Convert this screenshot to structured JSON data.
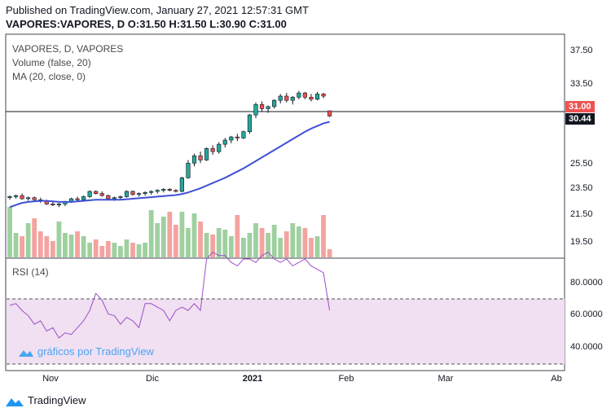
{
  "header": {
    "published": "Published on TradingView.com, January 27, 2021 12:57:31 GMT",
    "ohlc": "VAPORES:VAPORES, D O:31.50 H:31.50 L:30.90 C:31.00"
  },
  "legend": {
    "symbol": "VAPORES, D, VAPORES",
    "volume": "Volume (false, 20)",
    "ma": "MA (20, close, 0)",
    "rsi": "RSI (14)"
  },
  "price_axis": {
    "ticks": [
      "37.50",
      "33.50",
      "25.50",
      "23.50",
      "21.50",
      "19.50"
    ],
    "last_price": "31.00",
    "ma_value": "30.44"
  },
  "rsi_axis": {
    "ticks": [
      "80.0000",
      "60.0000",
      "40.0000"
    ],
    "upper_band": 70,
    "lower_band": 30
  },
  "time_axis": {
    "ticks": [
      "Nov",
      "Dic",
      "2021",
      "Feb",
      "Mar",
      "Ab"
    ]
  },
  "watermark": "gráficos por TradingView",
  "footer": {
    "brand": "TradingView"
  },
  "colors": {
    "up": "#26a69a",
    "down": "#ef5350",
    "vol_up": "#9fd0a0",
    "vol_down": "#f4a3a0",
    "ma": "#3f51d6",
    "rsi": "#9c4fc6",
    "rsi_band": "#f0e0f2",
    "text": "#131722"
  },
  "chart_data": {
    "type": "candlestick",
    "title": "VAPORES, D, VAPORES",
    "candles": [
      [
        23.2,
        23.4,
        23.0,
        23.3
      ],
      [
        23.3,
        23.5,
        23.1,
        23.4
      ],
      [
        23.4,
        23.6,
        23.0,
        23.1
      ],
      [
        23.1,
        23.3,
        22.9,
        23.2
      ],
      [
        23.2,
        23.3,
        22.8,
        23.0
      ],
      [
        23.0,
        23.2,
        22.7,
        22.9
      ],
      [
        22.9,
        23.0,
        22.5,
        22.6
      ],
      [
        22.6,
        22.8,
        22.4,
        22.5
      ],
      [
        22.5,
        22.7,
        22.3,
        22.6
      ],
      [
        22.6,
        22.9,
        22.4,
        22.8
      ],
      [
        22.8,
        23.2,
        22.7,
        23.1
      ],
      [
        23.1,
        23.3,
        22.9,
        23.0
      ],
      [
        23.0,
        23.4,
        22.9,
        23.3
      ],
      [
        23.3,
        23.9,
        23.2,
        23.8
      ],
      [
        23.8,
        23.9,
        23.5,
        23.6
      ],
      [
        23.6,
        23.8,
        23.3,
        23.4
      ],
      [
        23.4,
        23.5,
        23.0,
        23.1
      ],
      [
        23.1,
        23.3,
        22.9,
        23.2
      ],
      [
        23.2,
        23.4,
        23.0,
        23.3
      ],
      [
        23.3,
        23.9,
        23.2,
        23.8
      ],
      [
        23.8,
        23.9,
        23.4,
        23.5
      ],
      [
        23.5,
        23.7,
        23.3,
        23.6
      ],
      [
        23.6,
        23.8,
        23.4,
        23.7
      ],
      [
        23.7,
        23.9,
        23.5,
        23.8
      ],
      [
        23.8,
        24.0,
        23.6,
        23.9
      ],
      [
        23.9,
        24.1,
        23.7,
        24.0
      ],
      [
        24.0,
        24.1,
        23.8,
        23.9
      ],
      [
        23.9,
        24.0,
        23.7,
        23.8
      ],
      [
        23.8,
        25.2,
        23.7,
        25.1
      ],
      [
        25.1,
        26.8,
        25.0,
        26.5
      ],
      [
        26.5,
        27.4,
        26.2,
        27.2
      ],
      [
        27.2,
        27.6,
        26.5,
        26.8
      ],
      [
        26.8,
        28.0,
        26.7,
        27.9
      ],
      [
        27.9,
        28.2,
        27.3,
        27.6
      ],
      [
        27.6,
        28.5,
        27.4,
        28.3
      ],
      [
        28.3,
        28.9,
        28.0,
        28.7
      ],
      [
        28.7,
        29.1,
        28.4,
        29.0
      ],
      [
        29.0,
        29.3,
        28.6,
        28.9
      ],
      [
        28.9,
        29.6,
        28.8,
        29.5
      ],
      [
        29.5,
        31.2,
        29.3,
        31.1
      ],
      [
        31.1,
        32.3,
        30.8,
        32.1
      ],
      [
        32.1,
        32.4,
        31.4,
        31.7
      ],
      [
        31.7,
        32.0,
        31.3,
        31.9
      ],
      [
        31.9,
        32.6,
        31.7,
        32.5
      ],
      [
        32.5,
        33.1,
        32.2,
        32.9
      ],
      [
        32.9,
        33.2,
        32.3,
        32.5
      ],
      [
        32.5,
        32.9,
        32.1,
        32.8
      ],
      [
        32.8,
        33.4,
        32.6,
        33.2
      ],
      [
        33.2,
        33.3,
        32.6,
        32.8
      ],
      [
        32.8,
        33.1,
        32.4,
        32.6
      ],
      [
        32.6,
        33.3,
        32.5,
        33.1
      ],
      [
        33.1,
        33.2,
        32.7,
        32.9
      ],
      [
        31.5,
        31.5,
        30.9,
        31.0
      ]
    ],
    "ma20": [
      22.3,
      22.5,
      22.7,
      22.8,
      22.85,
      22.9,
      22.9,
      22.85,
      22.8,
      22.8,
      22.8,
      22.85,
      22.9,
      22.95,
      23.0,
      23.0,
      23.0,
      23.0,
      23.0,
      23.05,
      23.1,
      23.15,
      23.2,
      23.25,
      23.3,
      23.35,
      23.4,
      23.45,
      23.55,
      23.7,
      23.9,
      24.1,
      24.35,
      24.6,
      24.85,
      25.1,
      25.4,
      25.7,
      26.0,
      26.35,
      26.7,
      27.05,
      27.4,
      27.75,
      28.1,
      28.45,
      28.8,
      29.15,
      29.5,
      29.8,
      30.05,
      30.3,
      30.44
    ],
    "volume": [
      0.62,
      0.3,
      0.26,
      0.42,
      0.48,
      0.32,
      0.26,
      0.2,
      0.44,
      0.3,
      0.28,
      0.32,
      0.26,
      0.18,
      0.22,
      0.14,
      0.2,
      0.18,
      0.14,
      0.22,
      0.18,
      0.16,
      0.18,
      0.58,
      0.42,
      0.5,
      0.56,
      0.4,
      0.56,
      0.36,
      0.54,
      0.44,
      0.3,
      0.28,
      0.36,
      0.34,
      0.26,
      0.52,
      0.24,
      0.3,
      0.42,
      0.36,
      0.3,
      0.4,
      0.24,
      0.32,
      0.42,
      0.38,
      0.36,
      0.24,
      0.26,
      0.52,
      0.1
    ],
    "rsi": [
      61,
      62,
      58,
      55,
      50,
      52,
      46,
      48,
      42,
      45,
      44,
      48,
      52,
      58,
      68,
      64,
      56,
      55,
      50,
      54,
      52,
      48,
      62,
      62,
      60,
      58,
      52,
      58,
      60,
      58,
      62,
      58,
      88,
      92,
      90,
      90,
      86,
      84,
      88,
      88,
      86,
      90,
      92,
      88,
      86,
      88,
      84,
      86,
      88,
      84,
      82,
      80,
      58
    ],
    "ylim": [
      17.5,
      38.5
    ],
    "rsi_lim": [
      23,
      88
    ]
  }
}
